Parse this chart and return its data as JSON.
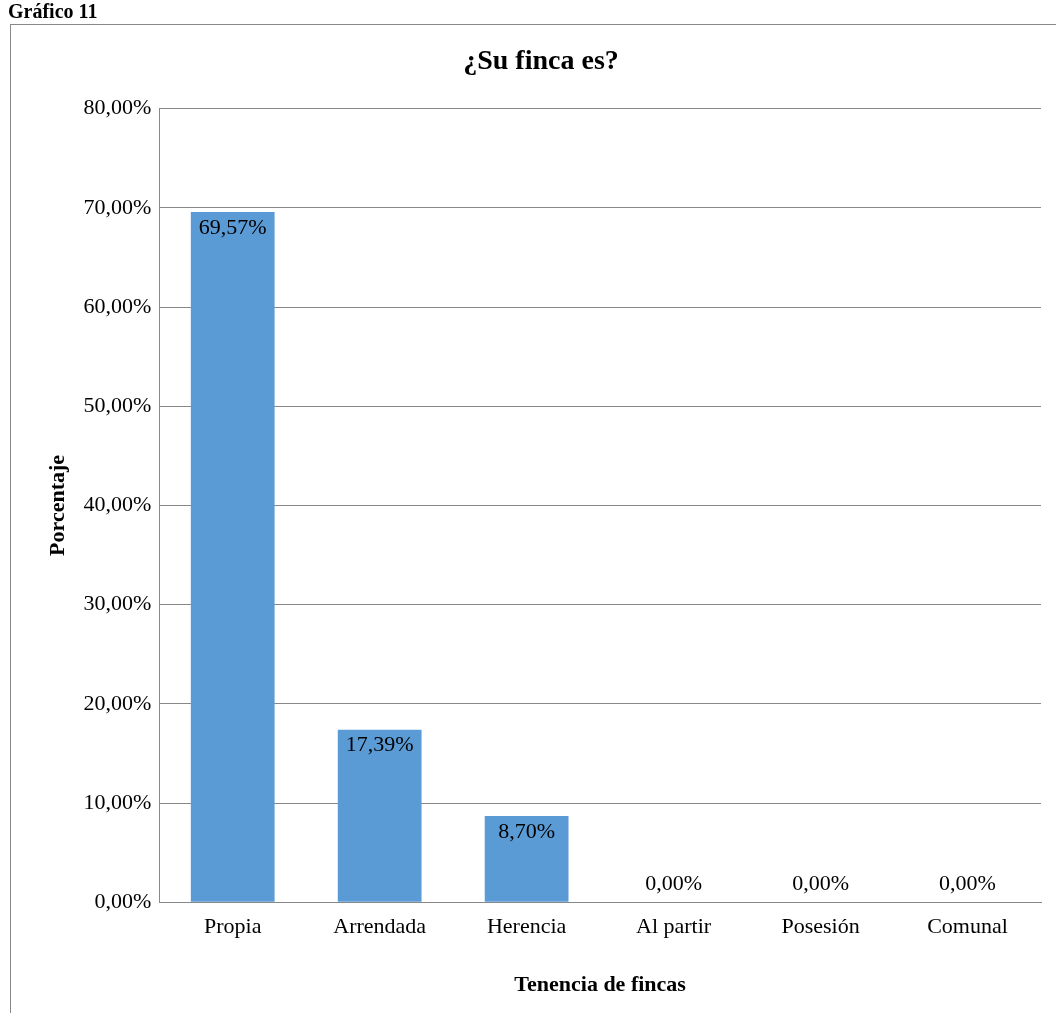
{
  "chart_data": {
    "type": "bar",
    "title": "¿Su finca es?",
    "xlabel": "Tenencia de fincas",
    "ylabel": "Porcentaje",
    "annotations": [
      "Gráfico 11"
    ],
    "categories": [
      "Propia",
      "Arrendada",
      "Herencia",
      "Al partir",
      "Posesión",
      "Comunal"
    ],
    "values": [
      69.57,
      17.39,
      8.7,
      0,
      0,
      0
    ],
    "value_labels": [
      "69,57%",
      "17,39%",
      "8,70%",
      "0,00%",
      "0,00%",
      "0,00%"
    ],
    "color": "#5b9bd5",
    "ylim": [
      0,
      80
    ],
    "yticks": [
      {
        "value": 0,
        "label": "0,00%"
      },
      {
        "value": 10,
        "label": "10,00%"
      },
      {
        "value": 20,
        "label": "20,00%"
      },
      {
        "value": 30,
        "label": "30,00%"
      },
      {
        "value": 40,
        "label": "40,00%"
      },
      {
        "value": 50,
        "label": "50,00%"
      },
      {
        "value": 60,
        "label": "60,00%"
      },
      {
        "value": 70,
        "label": "70,00%"
      },
      {
        "value": 80,
        "label": "80,00%"
      }
    ],
    "grid": "y",
    "legend": false
  }
}
